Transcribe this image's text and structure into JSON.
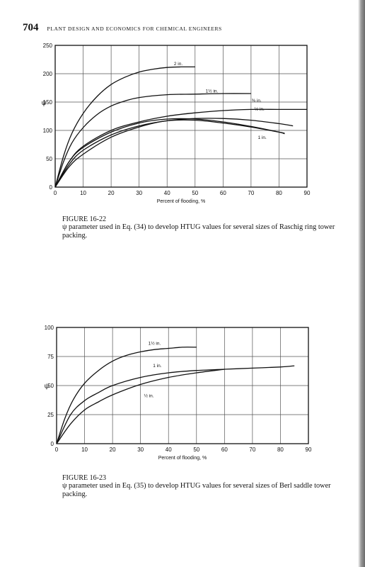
{
  "header": {
    "page_number": "704",
    "book_title": "PLANT DESIGN AND ECONOMICS FOR CHEMICAL ENGINEERS"
  },
  "figures": [
    {
      "label": "FIGURE 16-22",
      "caption": "ψ parameter used in Eq. (34) to develop HTUG values for several sizes of Raschig ring tower packing."
    },
    {
      "label": "FIGURE 16-23",
      "caption": "ψ parameter used in Eq. (35) to develop HTUG values for several sizes of Berl saddle tower packing."
    }
  ],
  "chart_data": [
    {
      "type": "line",
      "xlabel": "Percent of flooding, %",
      "ylabel": "ψ",
      "xlim": [
        0,
        90
      ],
      "ylim": [
        0,
        250
      ],
      "xticks": [
        "0",
        "10",
        "20",
        "30",
        "40",
        "50",
        "60",
        "70",
        "80",
        "90"
      ],
      "yticks": [
        "0",
        "50",
        "100",
        "150",
        "200",
        "250"
      ],
      "grid": true,
      "series": [
        {
          "name": "2 in.",
          "x": [
            0,
            3,
            6,
            10,
            15,
            20,
            25,
            30,
            35,
            40,
            45,
            50
          ],
          "y": [
            0,
            55,
            95,
            130,
            160,
            181,
            194,
            203,
            208,
            211,
            212,
            212
          ]
        },
        {
          "name": "1½ in.",
          "x": [
            0,
            3,
            6,
            10,
            15,
            20,
            25,
            30,
            40,
            50,
            60,
            70
          ],
          "y": [
            0,
            45,
            78,
            105,
            128,
            143,
            152,
            158,
            163,
            164,
            165,
            165
          ]
        },
        {
          "name": "⅜ in.",
          "x": [
            0,
            5,
            10,
            20,
            30,
            40,
            50,
            60,
            70,
            80,
            90
          ],
          "y": [
            0,
            45,
            72,
            100,
            115,
            125,
            131,
            135,
            137,
            137,
            137
          ]
        },
        {
          "name": "½ in.",
          "x": [
            0,
            5,
            10,
            20,
            30,
            40,
            50,
            60,
            70,
            80,
            85
          ],
          "y": [
            0,
            40,
            65,
            92,
            108,
            117,
            121,
            121,
            118,
            112,
            108
          ]
        },
        {
          "name": "1 in.",
          "x": [
            0,
            5,
            10,
            20,
            30,
            40,
            50,
            60,
            70,
            80,
            82
          ],
          "y": [
            0,
            45,
            70,
            97,
            113,
            120,
            120,
            115,
            107,
            97,
            94
          ]
        },
        {
          "name": "",
          "x": [
            0,
            5,
            10,
            20,
            30,
            40,
            50,
            60,
            70,
            80,
            82
          ],
          "y": [
            0,
            36,
            58,
            88,
            106,
            117,
            118,
            113,
            106,
            97,
            95
          ]
        }
      ]
    },
    {
      "type": "line",
      "xlabel": "Percent of flooding, %",
      "ylabel": "ψ",
      "xlim": [
        0,
        90
      ],
      "ylim": [
        0,
        100
      ],
      "xticks": [
        "0",
        "10",
        "20",
        "30",
        "40",
        "50",
        "60",
        "70",
        "80",
        "90"
      ],
      "yticks": [
        "0",
        "25",
        "50",
        "75",
        "100"
      ],
      "grid": true,
      "series": [
        {
          "name": "1½ in.",
          "x": [
            0,
            3,
            6,
            10,
            15,
            20,
            25,
            30,
            35,
            40,
            45,
            50
          ],
          "y": [
            0,
            22,
            38,
            52,
            63,
            71,
            76,
            79,
            81,
            82,
            83,
            83
          ]
        },
        {
          "name": "1 in.",
          "x": [
            0,
            5,
            10,
            15,
            20,
            30,
            40,
            50,
            60,
            70,
            80,
            85
          ],
          "y": [
            0,
            25,
            37,
            44,
            50,
            57,
            61,
            63,
            64,
            65,
            66,
            67
          ]
        },
        {
          "name": "½ in.",
          "x": [
            0,
            5,
            10,
            15,
            20,
            30,
            40,
            50,
            60
          ],
          "y": [
            0,
            17,
            29,
            36,
            42,
            51,
            57,
            61,
            64
          ]
        }
      ]
    }
  ]
}
